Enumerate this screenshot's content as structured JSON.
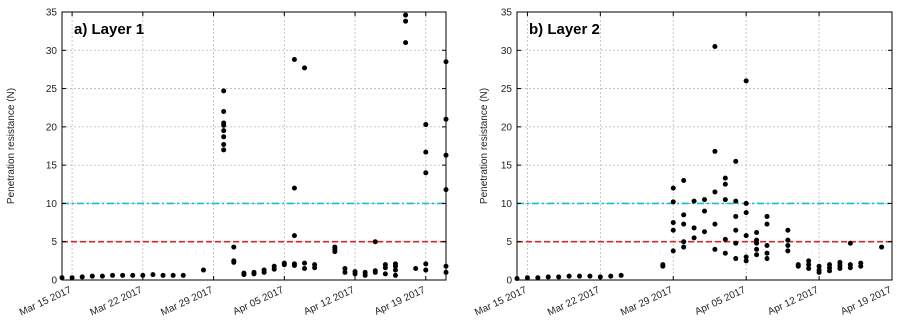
{
  "chart_data": [
    {
      "type": "scatter",
      "title": "a) Layer 1",
      "ylabel": "Penetration resistance (N)",
      "xlabel": "",
      "ylim": [
        0,
        35
      ],
      "yticks": [
        0,
        5,
        10,
        15,
        20,
        25,
        30,
        35
      ],
      "xlim": [
        "2017-03-14",
        "2017-04-21"
      ],
      "xticks": [
        {
          "date": "2017-03-15",
          "label": "Mar 15 2017"
        },
        {
          "date": "2017-03-22",
          "label": "Mar 22 2017"
        },
        {
          "date": "2017-03-29",
          "label": "Mar 29 2017"
        },
        {
          "date": "2017-04-05",
          "label": "Apr 05 2017"
        },
        {
          "date": "2017-04-12",
          "label": "Apr 12 2017"
        },
        {
          "date": "2017-04-19",
          "label": "Apr 19 2017"
        }
      ],
      "grid": true,
      "reference_lines": [
        {
          "y": 10,
          "color": "#17becf",
          "style": "dashdot"
        },
        {
          "y": 5,
          "color": "#d62728",
          "style": "dashed"
        }
      ],
      "series": [
        {
          "color": "#000000",
          "points": [
            [
              "2017-03-14",
              0.3
            ],
            [
              "2017-03-15",
              0.3
            ],
            [
              "2017-03-16",
              0.4
            ],
            [
              "2017-03-17",
              0.5
            ],
            [
              "2017-03-18",
              0.5
            ],
            [
              "2017-03-19",
              0.6
            ],
            [
              "2017-03-20",
              0.6
            ],
            [
              "2017-03-21",
              0.6
            ],
            [
              "2017-03-22",
              0.6
            ],
            [
              "2017-03-23",
              0.7
            ],
            [
              "2017-03-24",
              0.6
            ],
            [
              "2017-03-25",
              0.6
            ],
            [
              "2017-03-26",
              0.6
            ],
            [
              "2017-03-28",
              1.3
            ],
            [
              "2017-03-30",
              17.0
            ],
            [
              "2017-03-30",
              17.7
            ],
            [
              "2017-03-30",
              18.7
            ],
            [
              "2017-03-30",
              19.5
            ],
            [
              "2017-03-30",
              20.2
            ],
            [
              "2017-03-30",
              20.5
            ],
            [
              "2017-03-30",
              22.0
            ],
            [
              "2017-03-30",
              24.7
            ],
            [
              "2017-03-31",
              2.3
            ],
            [
              "2017-03-31",
              2.5
            ],
            [
              "2017-03-31",
              4.3
            ],
            [
              "2017-04-01",
              0.7
            ],
            [
              "2017-04-01",
              0.9
            ],
            [
              "2017-04-02",
              0.8
            ],
            [
              "2017-04-02",
              1.0
            ],
            [
              "2017-04-03",
              1.0
            ],
            [
              "2017-04-03",
              1.3
            ],
            [
              "2017-04-04",
              1.4
            ],
            [
              "2017-04-04",
              1.8
            ],
            [
              "2017-04-05",
              2.0
            ],
            [
              "2017-04-05",
              2.2
            ],
            [
              "2017-04-06",
              1.9
            ],
            [
              "2017-04-06",
              2.1
            ],
            [
              "2017-04-06",
              5.8
            ],
            [
              "2017-04-06",
              12.0
            ],
            [
              "2017-04-06",
              28.8
            ],
            [
              "2017-04-07",
              1.5
            ],
            [
              "2017-04-07",
              2.2
            ],
            [
              "2017-04-07",
              27.7
            ],
            [
              "2017-04-08",
              1.6
            ],
            [
              "2017-04-08",
              2.0
            ],
            [
              "2017-04-10",
              3.7
            ],
            [
              "2017-04-10",
              4.0
            ],
            [
              "2017-04-10",
              4.3
            ],
            [
              "2017-04-11",
              1.0
            ],
            [
              "2017-04-11",
              1.5
            ],
            [
              "2017-04-12",
              0.8
            ],
            [
              "2017-04-12",
              1.1
            ],
            [
              "2017-04-13",
              0.6
            ],
            [
              "2017-04-13",
              1.0
            ],
            [
              "2017-04-14",
              1.2
            ],
            [
              "2017-04-14",
              1.0
            ],
            [
              "2017-04-14",
              5.0
            ],
            [
              "2017-04-15",
              0.8
            ],
            [
              "2017-04-15",
              1.6
            ],
            [
              "2017-04-15",
              2.0
            ],
            [
              "2017-04-16",
              0.6
            ],
            [
              "2017-04-16",
              1.3
            ],
            [
              "2017-04-16",
              1.8
            ],
            [
              "2017-04-16",
              2.1
            ],
            [
              "2017-04-17",
              31.0
            ],
            [
              "2017-04-17",
              33.8
            ],
            [
              "2017-04-17",
              34.6
            ],
            [
              "2017-04-18",
              1.5
            ],
            [
              "2017-04-19",
              14.0
            ],
            [
              "2017-04-19",
              16.7
            ],
            [
              "2017-04-19",
              20.3
            ],
            [
              "2017-04-19",
              1.3
            ],
            [
              "2017-04-19",
              2.1
            ],
            [
              "2017-04-21",
              1.0
            ],
            [
              "2017-04-21",
              1.8
            ],
            [
              "2017-04-21",
              11.8
            ],
            [
              "2017-04-21",
              16.3
            ],
            [
              "2017-04-21",
              21.0
            ],
            [
              "2017-04-21",
              28.5
            ]
          ]
        }
      ]
    },
    {
      "type": "scatter",
      "title": "b) Layer 2",
      "ylabel": "Penetration resistance (N)",
      "xlabel": "",
      "ylim": [
        0,
        35
      ],
      "yticks": [
        0,
        5,
        10,
        15,
        20,
        25,
        30,
        35
      ],
      "xlim": [
        "2017-03-14",
        "2017-04-19"
      ],
      "xticks": [
        {
          "date": "2017-03-15",
          "label": "Mar 15 2017"
        },
        {
          "date": "2017-03-22",
          "label": "Mar 22 2017"
        },
        {
          "date": "2017-03-29",
          "label": "Mar 29 2017"
        },
        {
          "date": "2017-04-05",
          "label": "Apr 05 2017"
        },
        {
          "date": "2017-04-12",
          "label": "Apr 12 2017"
        },
        {
          "date": "2017-04-19",
          "label": "Apr 19 2017"
        }
      ],
      "grid": true,
      "reference_lines": [
        {
          "y": 10,
          "color": "#17becf",
          "style": "dashdot"
        },
        {
          "y": 5,
          "color": "#d62728",
          "style": "dashed"
        }
      ],
      "series": [
        {
          "color": "#000000",
          "points": [
            [
              "2017-03-14",
              0.2
            ],
            [
              "2017-03-15",
              0.3
            ],
            [
              "2017-03-16",
              0.3
            ],
            [
              "2017-03-17",
              0.4
            ],
            [
              "2017-03-18",
              0.4
            ],
            [
              "2017-03-19",
              0.5
            ],
            [
              "2017-03-20",
              0.5
            ],
            [
              "2017-03-21",
              0.5
            ],
            [
              "2017-03-22",
              0.4
            ],
            [
              "2017-03-23",
              0.5
            ],
            [
              "2017-03-24",
              0.6
            ],
            [
              "2017-03-28",
              1.8
            ],
            [
              "2017-03-28",
              2.0
            ],
            [
              "2017-03-29",
              3.8
            ],
            [
              "2017-03-29",
              6.5
            ],
            [
              "2017-03-29",
              7.5
            ],
            [
              "2017-03-29",
              10.2
            ],
            [
              "2017-03-29",
              12.0
            ],
            [
              "2017-03-30",
              4.3
            ],
            [
              "2017-03-30",
              5.0
            ],
            [
              "2017-03-30",
              7.3
            ],
            [
              "2017-03-30",
              8.5
            ],
            [
              "2017-03-30",
              13.0
            ],
            [
              "2017-03-31",
              5.5
            ],
            [
              "2017-03-31",
              6.8
            ],
            [
              "2017-03-31",
              10.3
            ],
            [
              "2017-04-01",
              6.3
            ],
            [
              "2017-04-01",
              9.0
            ],
            [
              "2017-04-01",
              10.5
            ],
            [
              "2017-04-02",
              4.0
            ],
            [
              "2017-04-02",
              7.3
            ],
            [
              "2017-04-02",
              11.5
            ],
            [
              "2017-04-02",
              16.8
            ],
            [
              "2017-04-02",
              30.5
            ],
            [
              "2017-04-03",
              3.5
            ],
            [
              "2017-04-03",
              5.3
            ],
            [
              "2017-04-03",
              10.5
            ],
            [
              "2017-04-03",
              12.5
            ],
            [
              "2017-04-03",
              13.3
            ],
            [
              "2017-04-04",
              2.8
            ],
            [
              "2017-04-04",
              4.8
            ],
            [
              "2017-04-04",
              6.5
            ],
            [
              "2017-04-04",
              8.3
            ],
            [
              "2017-04-04",
              10.3
            ],
            [
              "2017-04-04",
              15.5
            ],
            [
              "2017-04-05",
              2.5
            ],
            [
              "2017-04-05",
              3.0
            ],
            [
              "2017-04-05",
              5.8
            ],
            [
              "2017-04-05",
              8.8
            ],
            [
              "2017-04-05",
              10.0
            ],
            [
              "2017-04-05",
              26.0
            ],
            [
              "2017-04-06",
              3.3
            ],
            [
              "2017-04-06",
              4.0
            ],
            [
              "2017-04-06",
              4.8
            ],
            [
              "2017-04-06",
              5.2
            ],
            [
              "2017-04-06",
              6.2
            ],
            [
              "2017-04-07",
              2.8
            ],
            [
              "2017-04-07",
              3.5
            ],
            [
              "2017-04-07",
              4.5
            ],
            [
              "2017-04-07",
              7.3
            ],
            [
              "2017-04-07",
              8.3
            ],
            [
              "2017-04-09",
              3.8
            ],
            [
              "2017-04-09",
              4.5
            ],
            [
              "2017-04-09",
              5.2
            ],
            [
              "2017-04-09",
              6.5
            ],
            [
              "2017-04-10",
              1.8
            ],
            [
              "2017-04-10",
              2.0
            ],
            [
              "2017-04-11",
              1.5
            ],
            [
              "2017-04-11",
              2.0
            ],
            [
              "2017-04-11",
              2.5
            ],
            [
              "2017-04-12",
              1.0
            ],
            [
              "2017-04-12",
              1.3
            ],
            [
              "2017-04-12",
              1.8
            ],
            [
              "2017-04-13",
              1.2
            ],
            [
              "2017-04-13",
              1.6
            ],
            [
              "2017-04-13",
              2.0
            ],
            [
              "2017-04-14",
              1.5
            ],
            [
              "2017-04-14",
              1.9
            ],
            [
              "2017-04-14",
              2.3
            ],
            [
              "2017-04-15",
              1.6
            ],
            [
              "2017-04-15",
              2.0
            ],
            [
              "2017-04-15",
              4.8
            ],
            [
              "2017-04-16",
              1.8
            ],
            [
              "2017-04-16",
              2.2
            ],
            [
              "2017-04-18",
              4.3
            ]
          ]
        }
      ]
    }
  ]
}
